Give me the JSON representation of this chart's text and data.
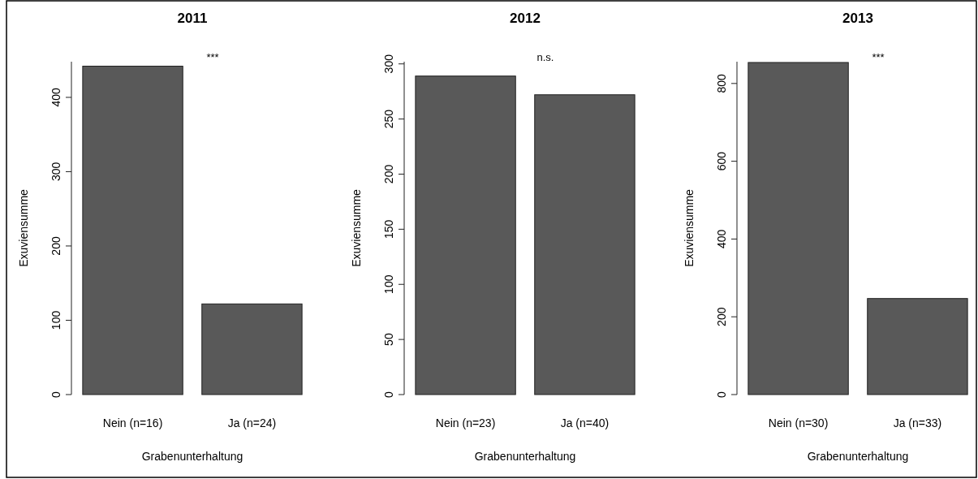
{
  "chart_data": [
    {
      "type": "bar",
      "title": "2011",
      "xlabel": "Grabenunterhaltung",
      "ylabel": "Exuviensumme",
      "categories": [
        "Nein (n=16)",
        "Ja (n=24)"
      ],
      "values": [
        442,
        122
      ],
      "color": "#595959",
      "ylim": [
        0,
        448
      ],
      "yticks": [
        0,
        100,
        200,
        300,
        400
      ],
      "grid": false,
      "annotations": [
        "***"
      ]
    },
    {
      "type": "bar",
      "title": "2012",
      "xlabel": "Grabenunterhaltung",
      "ylabel": "Exuviensumme",
      "categories": [
        "Nein (n=23)",
        "Ja (n=40)"
      ],
      "values": [
        289,
        272
      ],
      "color": "#595959",
      "ylim": [
        0,
        302
      ],
      "yticks": [
        0,
        50,
        100,
        150,
        200,
        250,
        300
      ],
      "grid": false,
      "annotations": [
        "n.s."
      ]
    },
    {
      "type": "bar",
      "title": "2013",
      "xlabel": "Grabenunterhaltung",
      "ylabel": "Exuviensumme",
      "categories": [
        "Nein (n=30)",
        "Ja (n=33)"
      ],
      "values": [
        854,
        247
      ],
      "color": "#595959",
      "ylim": [
        0,
        856
      ],
      "yticks": [
        0,
        200,
        400,
        600,
        800
      ],
      "grid": false,
      "annotations": [
        "***"
      ]
    }
  ]
}
